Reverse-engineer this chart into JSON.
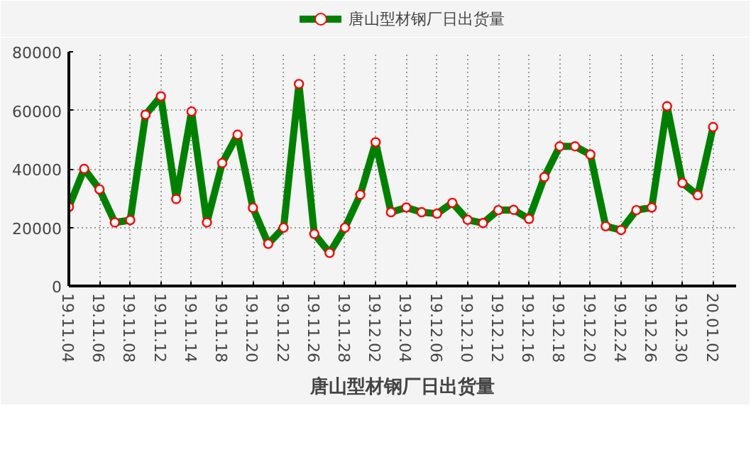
{
  "chart_data": {
    "type": "line",
    "title": "唐山型材钢厂日出货量",
    "categories": [
      "19.11.04",
      null,
      "19.11.06",
      null,
      "19.11.08",
      null,
      "19.11.12",
      null,
      "19.11.14",
      null,
      "19.11.18",
      null,
      "19.11.20",
      null,
      "19.11.22",
      null,
      "19.11.26",
      null,
      "19.11.28",
      null,
      "19.12.02",
      null,
      "19.12.04",
      null,
      "19.12.06",
      null,
      "19.12.10",
      null,
      "19.12.12",
      null,
      "19.12.16",
      null,
      "19.12.18",
      null,
      "19.12.20",
      null,
      "19.12.24",
      null,
      "19.12.26",
      null,
      "19.12.30",
      null,
      "20.01.02"
    ],
    "series": [
      {
        "name": "唐山型材钢厂日出货量",
        "color": "#008000",
        "values": [
          27000,
          40000,
          33000,
          21700,
          22500,
          58500,
          64800,
          29700,
          59600,
          21700,
          42000,
          51700,
          26700,
          14400,
          19900,
          69000,
          17800,
          11300,
          19900,
          31200,
          49100,
          25200,
          26800,
          25200,
          24700,
          28400,
          22600,
          21500,
          25900,
          26000,
          22900,
          37200,
          47700,
          47700,
          44900,
          20400,
          19100,
          25900,
          26800,
          61400,
          35200,
          31000,
          54300
        ]
      }
    ],
    "ylim": [
      0,
      80000
    ],
    "yticks": [
      0,
      20000,
      40000,
      60000,
      80000
    ],
    "grid": true,
    "legend": "top",
    "marker": "circle",
    "line_style": "solid"
  }
}
